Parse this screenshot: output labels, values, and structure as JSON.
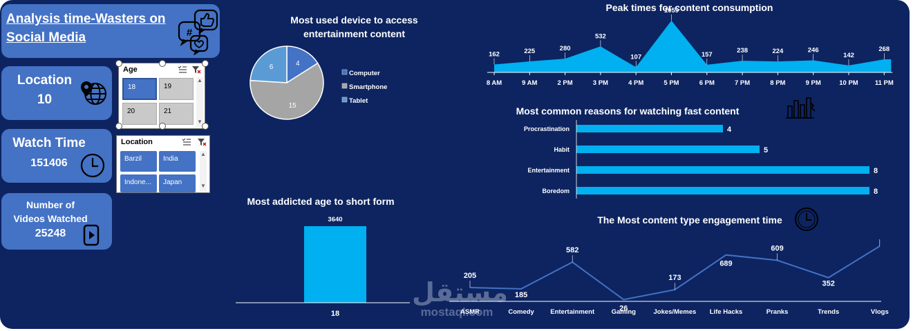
{
  "header": {
    "title_line1": "Analysis time-Wasters on",
    "title_line2": "Social Media"
  },
  "kpis": {
    "location": {
      "label": "Location",
      "value": "10"
    },
    "watch_time": {
      "label": "Watch Time",
      "value": "151406"
    },
    "videos": {
      "label_line1": "Number of",
      "label_line2": "Videos Watched",
      "value": "25248"
    }
  },
  "slicers": {
    "age": {
      "header": "Age",
      "items": [
        "18",
        "19",
        "20",
        "21"
      ],
      "selected": "18"
    },
    "location": {
      "header": "Location",
      "items": [
        "Barzil",
        "India",
        "Indone...",
        "Japan"
      ]
    }
  },
  "colors": {
    "background": "#0d2461",
    "card": "#4472c4",
    "accent": "#00b0f0",
    "line": "#4472c4"
  },
  "watermark": {
    "arabic": "مستقل",
    "latin": "mostaql.com"
  },
  "chart_data": [
    {
      "type": "pie",
      "title_line1": "Most used device to access",
      "title_line2": "entertainment content",
      "categories": [
        "Computer",
        "Smartphone",
        "Tablet"
      ],
      "values": [
        4,
        15,
        6
      ],
      "colors": [
        "#4472c4",
        "#a5a5a5",
        "#5b9bd5"
      ],
      "legend": "right"
    },
    {
      "type": "area",
      "title": "Peak times for content consumption",
      "categories": [
        "8 AM",
        "9 AM",
        "2 PM",
        "3 PM",
        "4 PM",
        "5 PM",
        "6 PM",
        "7 PM",
        "8 PM",
        "9 PM",
        "10 PM",
        "11 PM"
      ],
      "values": [
        162,
        225,
        280,
        532,
        107,
        1059,
        157,
        238,
        224,
        246,
        142,
        268
      ],
      "ylim": [
        0,
        1100
      ]
    },
    {
      "type": "bar",
      "orientation": "horizontal",
      "title": "Most common reasons for watching fast content",
      "categories": [
        "Procrastination",
        "Habit",
        "Entertainment",
        "Boredom"
      ],
      "values": [
        4,
        5,
        8,
        8
      ],
      "xlim": [
        0,
        8
      ]
    },
    {
      "type": "bar",
      "title": "Most addicted age to short form",
      "categories": [
        "18"
      ],
      "values": [
        3640
      ],
      "ylim": [
        0,
        3640
      ]
    },
    {
      "type": "line",
      "title": "The Most content type engagement time",
      "categories": [
        "ASMR",
        "Comedy",
        "Entertainment",
        "Gaming",
        "Jokes/Memes",
        "Life Hacks",
        "Pranks",
        "Trends",
        "Vlogs"
      ],
      "values": [
        205,
        185,
        582,
        26,
        173,
        689,
        609,
        352,
        819
      ],
      "ylim": [
        0,
        819
      ]
    }
  ]
}
